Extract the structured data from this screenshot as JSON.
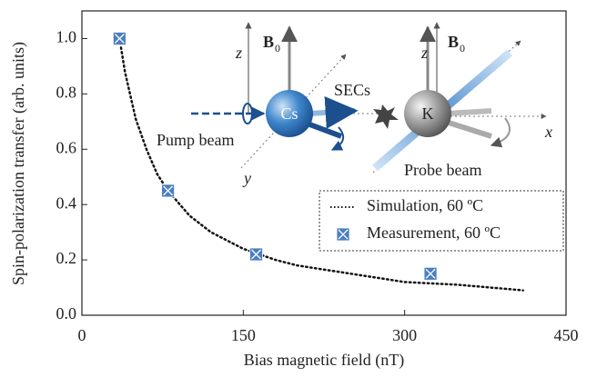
{
  "chart_data": {
    "type": "scatter",
    "x_label": "Bias magnetic field  (nT)",
    "y_label": "Spin-polarization transfer (arb. units)",
    "xlim": [
      0,
      450
    ],
    "ylim": [
      0,
      1.1
    ],
    "xticks": [
      0,
      150,
      300,
      450
    ],
    "yticks": [
      {
        "value": 0,
        "label": "0.0"
      },
      0.2,
      0.4,
      0.6,
      0.8,
      {
        "value": 1,
        "label": "1.0"
      }
    ],
    "legend": "right",
    "series": [
      {
        "name": "Simulation, 60 ºC",
        "kind": "line",
        "color": "#111111",
        "x": [
          35,
          40,
          50,
          60,
          70,
          80,
          100,
          120,
          150,
          180,
          200,
          250,
          300,
          350,
          410
        ],
        "values": [
          1.0,
          0.88,
          0.71,
          0.6,
          0.51,
          0.45,
          0.36,
          0.3,
          0.24,
          0.2,
          0.18,
          0.15,
          0.12,
          0.11,
          0.09
        ]
      },
      {
        "name": "Measurement, 60 ºC",
        "kind": "marker",
        "color": "#4a7fc1",
        "x": [
          35,
          80,
          162,
          324
        ],
        "values": [
          1.0,
          0.45,
          0.22,
          0.15
        ]
      }
    ],
    "inset": {
      "labels": [
        "z",
        "B",
        "0",
        "z",
        "B",
        "0",
        "Cs",
        "SECs",
        "K",
        "Pump beam",
        "Probe beam",
        "x",
        "y"
      ]
    }
  }
}
